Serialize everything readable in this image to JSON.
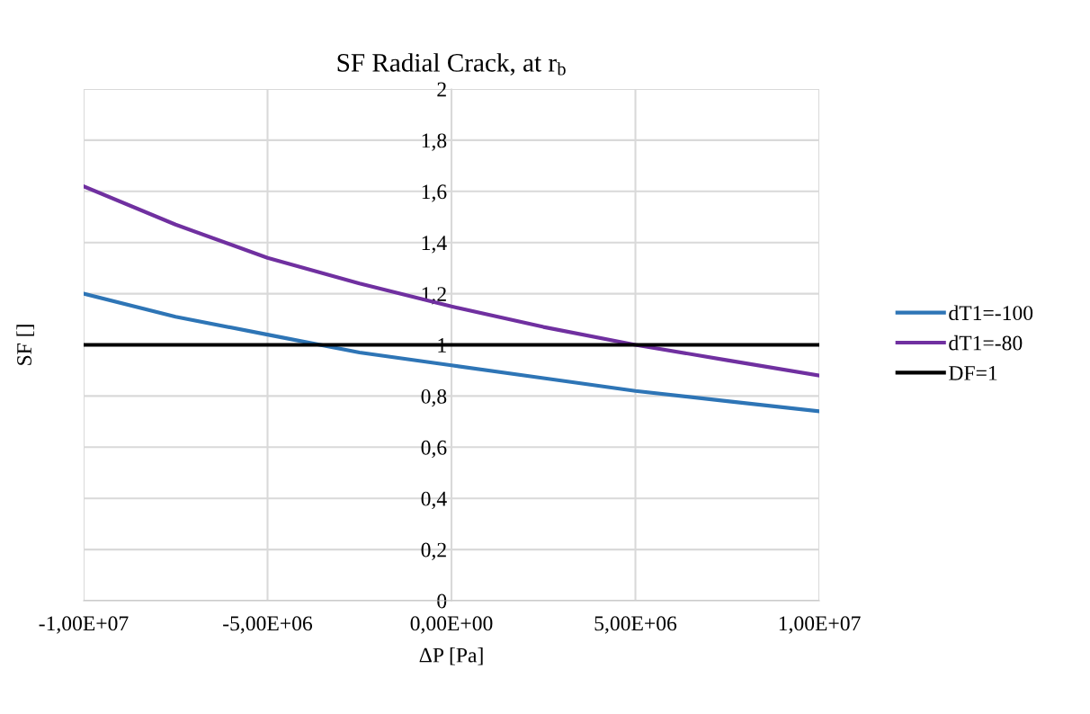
{
  "chart_data": {
    "type": "line",
    "title": "SF Radial Crack, at r$_{b}$",
    "xlabel": "ΔP [Pa]",
    "ylabel": "SF []",
    "categories": [
      "-1,00E+07",
      null,
      "-5,00E+06",
      null,
      "0,00E+00",
      null,
      "5,00E+06",
      null,
      "1,00E+07"
    ],
    "series": [
      {
        "name": "dT1=-100",
        "color": "#2e75b6",
        "values": [
          1.2,
          1.11,
          1.04,
          0.97,
          0.92,
          0.87,
          0.82,
          0.78,
          0.74
        ]
      },
      {
        "name": "dT1=-80",
        "color": "#7030a0",
        "values": [
          1.62,
          1.47,
          1.34,
          1.24,
          1.15,
          1.07,
          1.0,
          0.94,
          0.88
        ]
      },
      {
        "name": "DF=1",
        "color": "#000000",
        "values": [
          1,
          1,
          1,
          1,
          1,
          1,
          1,
          1,
          1
        ]
      }
    ],
    "ylim": [
      0,
      2
    ],
    "yticks": [
      0,
      {
        "value": 0.2,
        "label": "0,2"
      },
      {
        "value": 0.4,
        "label": "0,4"
      },
      {
        "value": 0.6,
        "label": "0,6"
      },
      {
        "value": 0.8,
        "label": "0,8"
      },
      1,
      {
        "value": 1.2,
        "label": "1,2"
      },
      {
        "value": 1.4,
        "label": "1,4"
      },
      {
        "value": 1.6,
        "label": "1,6"
      },
      {
        "value": 1.8,
        "label": "1,8"
      },
      2
    ],
    "grid": true,
    "legend": "right",
    "marker": "none",
    "line_style": "solid"
  }
}
